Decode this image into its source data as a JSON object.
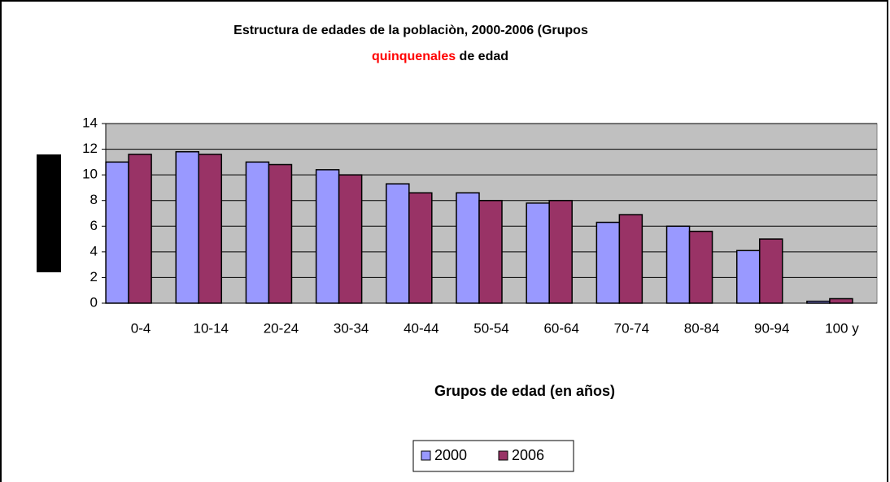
{
  "chart_data": {
    "type": "bar",
    "title_lines": [
      [
        "Estructura de edades de la poblaciòn, 2000-2006 (Grupos"
      ],
      [
        "quinquenales",
        " de edad"
      ]
    ],
    "title_colors": [
      [
        "#000000"
      ],
      [
        "#ff0000",
        "#000000"
      ]
    ],
    "x_label": "Grupos de edad (en años)",
    "categories": [
      "0-4",
      "10-14",
      "20-24",
      "30-34",
      "40-44",
      "50-54",
      "60-64",
      "70-74",
      "80-84",
      "90-94",
      "100 y"
    ],
    "series": [
      {
        "name": "2000",
        "color": "#9999ff",
        "values": [
          11.0,
          11.8,
          11.0,
          10.4,
          9.3,
          8.6,
          7.8,
          6.3,
          6.0,
          4.1,
          0.15
        ]
      },
      {
        "name": "2006",
        "color": "#993366",
        "values": [
          11.6,
          11.6,
          10.8,
          10.0,
          8.6,
          8.0,
          8.0,
          6.9,
          5.6,
          5.0,
          0.35
        ]
      }
    ],
    "ylim": [
      0,
      14
    ],
    "yticks": [
      0,
      2,
      4,
      6,
      8,
      10,
      12,
      14
    ],
    "grid": true,
    "legend": "bottom"
  }
}
